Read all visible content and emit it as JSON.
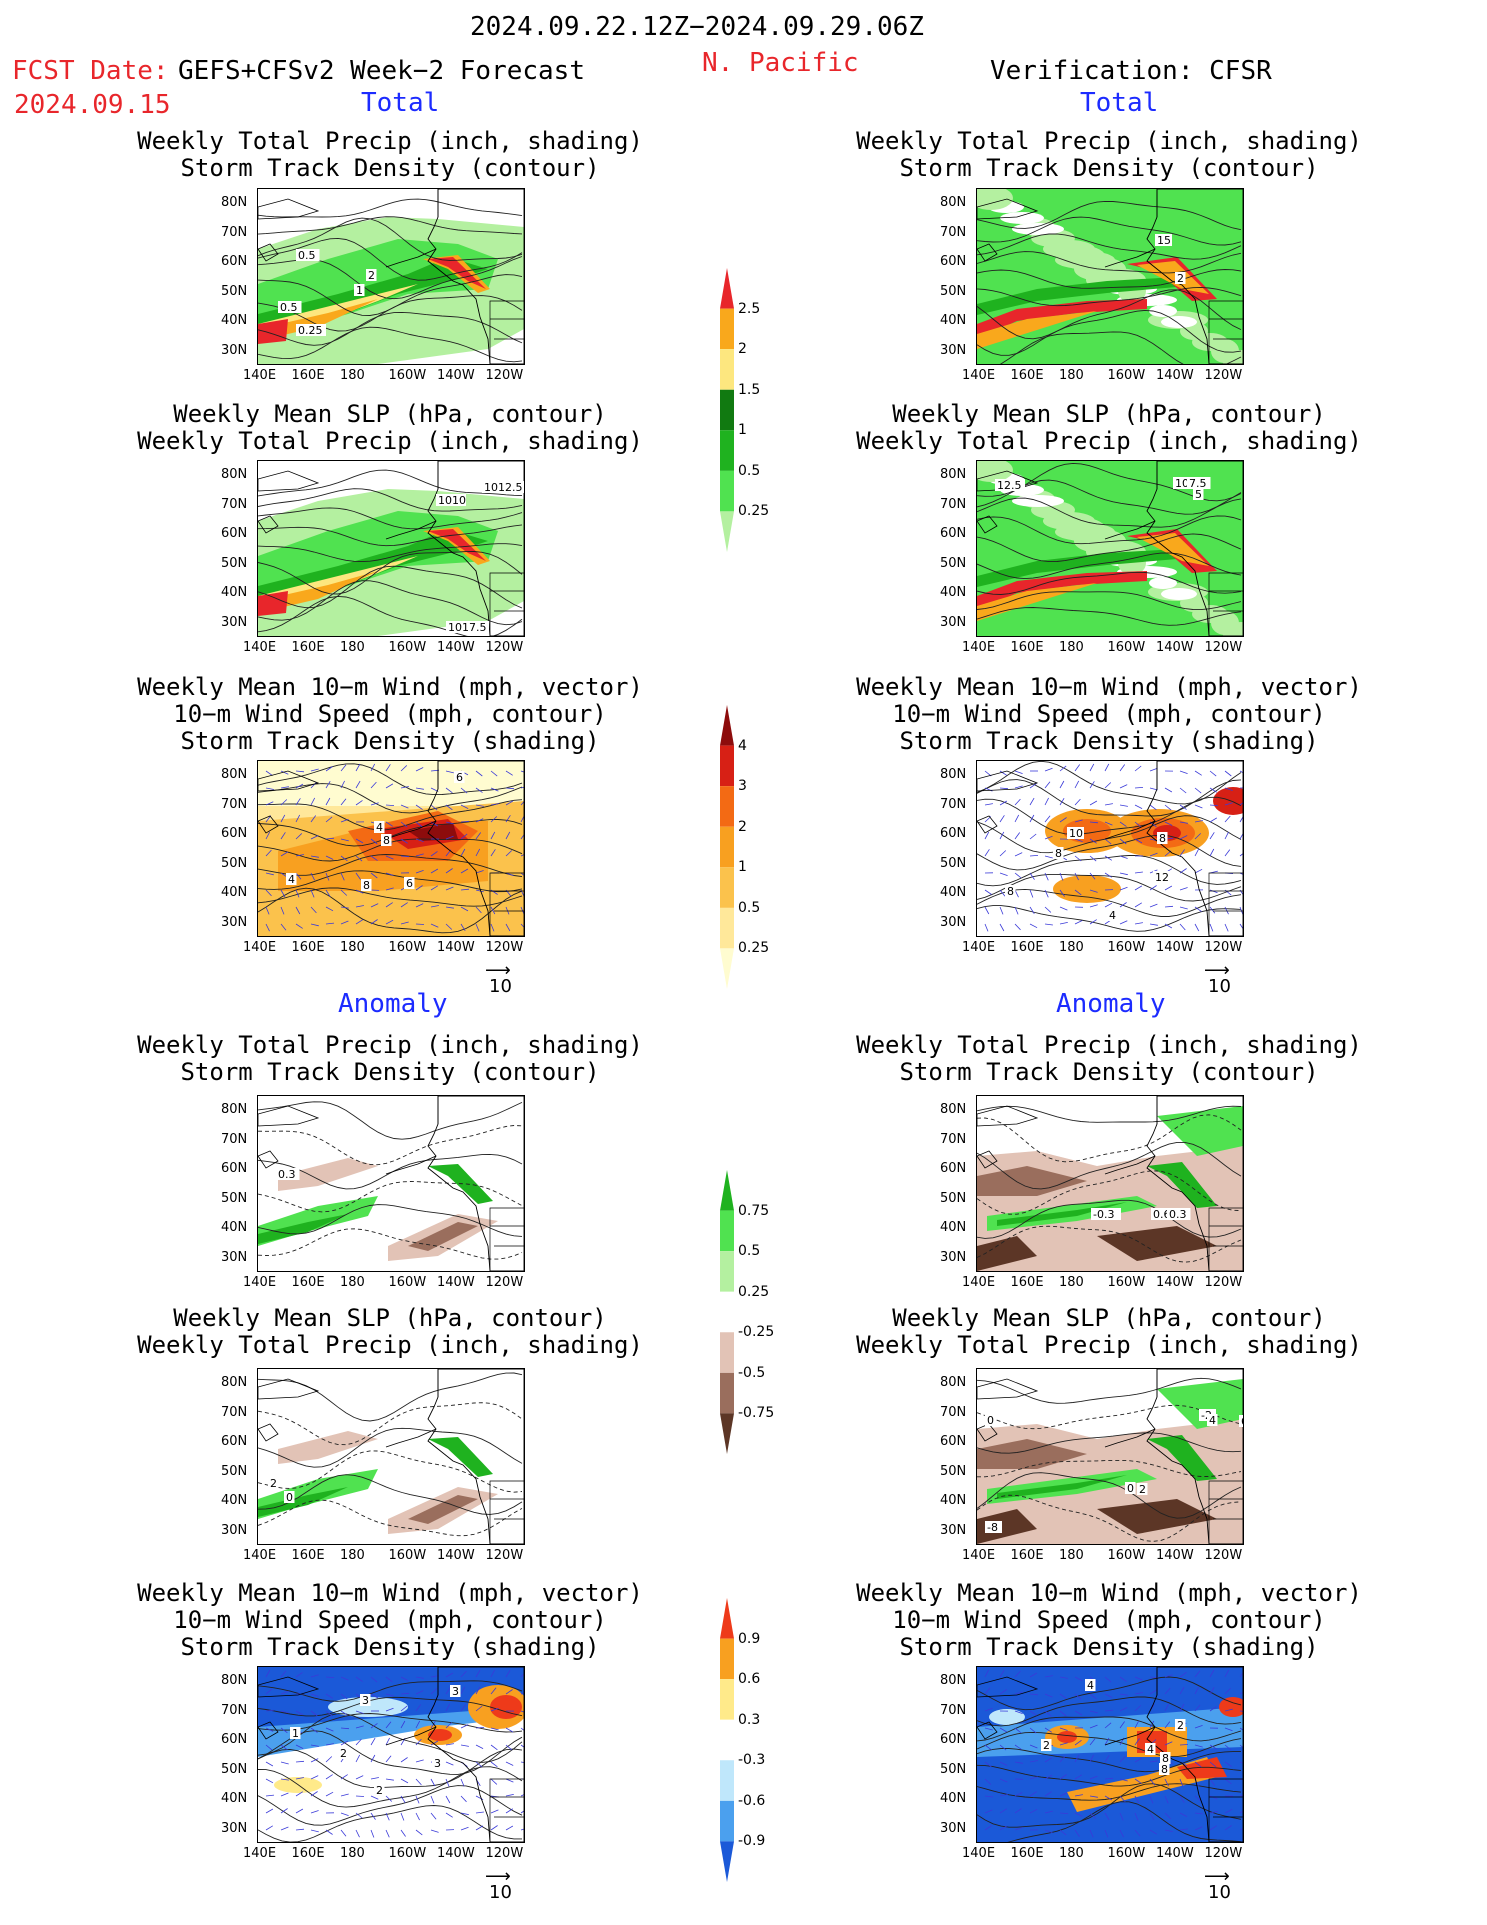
{
  "header": {
    "period": "2024.09.22.12Z−2024.09.29.06Z",
    "region": "N. Pacific",
    "fcst_label": "FCST Date:",
    "fcst_model": "GEFS+CFSv2 Week−2 Forecast",
    "fcst_date": "2024.09.15",
    "verification": "Verification: CFSR"
  },
  "sections": {
    "total_left": "Total",
    "total_right": "Total",
    "anomaly_left": "Anomaly",
    "anomaly_right": "Anomaly"
  },
  "titles": {
    "precip_storm": [
      "Weekly Total Precip (inch, shading)",
      "Storm Track Density (contour)"
    ],
    "slp_precip": [
      "Weekly Mean SLP (hPa, contour)",
      "Weekly Total Precip (inch, shading)"
    ],
    "wind_storm": [
      "Weekly Mean 10−m Wind (mph, vector)",
      "10−m Wind Speed (mph, contour)",
      "Storm Track Density (shading)"
    ]
  },
  "axes": {
    "lat_ticks": [
      "80N",
      "70N",
      "60N",
      "50N",
      "40N",
      "30N"
    ],
    "lon_ticks": [
      "140E",
      "160E",
      "180",
      "160W",
      "140W",
      "120W"
    ]
  },
  "vector_ref": "10",
  "colorbars": {
    "precip_total": {
      "levels": [
        "0.25",
        "0.5",
        "1",
        "1.5",
        "2",
        "2.5"
      ],
      "colors": [
        "#b4f0a0",
        "#50e250",
        "#1fb21f",
        "#117a11",
        "#fde77f",
        "#f9a81c",
        "#e8262b"
      ]
    },
    "storm_total": {
      "levels": [
        "0.25",
        "0.5",
        "1",
        "2",
        "3",
        "4"
      ],
      "colors": [
        "#fffcd0",
        "#ffe89a",
        "#fbc24c",
        "#f8a020",
        "#f36a14",
        "#d72015",
        "#8d0c0c"
      ]
    },
    "precip_anom": {
      "levels": [
        "-0.75",
        "-0.5",
        "-0.25",
        "0.25",
        "0.5",
        "0.75"
      ],
      "colors": [
        "#5c3626",
        "#9a6e5d",
        "#e2c3b6",
        "#ffffff",
        "#b4f0a0",
        "#50e250",
        "#1fb21f"
      ]
    },
    "storm_anom": {
      "levels": [
        "-0.9",
        "-0.6",
        "-0.3",
        "0.3",
        "0.6",
        "0.9"
      ],
      "colors": [
        "#1b59d8",
        "#4ba0ee",
        "#bfe7fb",
        "#ffffff",
        "#ffea8a",
        "#f8a020",
        "#ee3a1a"
      ]
    }
  },
  "chart_data": [
    {
      "type": "heatmap",
      "panel": "forecast-total-precip-storm",
      "title": [
        "Weekly Total Precip (inch, shading)",
        "Storm Track Density (contour)"
      ],
      "contour_labels": [
        "0.5",
        "2",
        "1",
        "0.5",
        "0.25"
      ]
    },
    {
      "type": "heatmap",
      "panel": "forecast-total-slp-precip",
      "title": [
        "Weekly Mean SLP (hPa, contour)",
        "Weekly Total Precip (inch, shading)"
      ],
      "contour_labels": [
        "1012.5",
        "1010",
        "1017.5"
      ]
    },
    {
      "type": "heatmap",
      "panel": "forecast-total-wind-storm",
      "title": [
        "Weekly Mean 10−m Wind (mph, vector)",
        "10−m Wind Speed (mph, contour)",
        "Storm Track Density (shading)"
      ],
      "contour_labels": [
        "6",
        "4",
        "8",
        "4",
        "8",
        "6"
      ]
    },
    {
      "type": "heatmap",
      "panel": "forecast-anom-precip-storm",
      "title": [
        "Weekly Total Precip (inch, shading)",
        "Storm Track Density (contour)"
      ],
      "contour_labels": [
        "0.3"
      ]
    },
    {
      "type": "heatmap",
      "panel": "forecast-anom-slp-precip",
      "title": [
        "Weekly Mean SLP (hPa, contour)",
        "Weekly Total Precip (inch, shading)"
      ],
      "contour_labels": [
        "2",
        "0"
      ]
    },
    {
      "type": "heatmap",
      "panel": "forecast-anom-wind-storm",
      "title": [
        "Weekly Mean 10−m Wind (mph, vector)",
        "10−m Wind Speed (mph, contour)",
        "Storm Track Density (shading)"
      ],
      "contour_labels": [
        "3",
        "3",
        "2",
        "2",
        "3",
        "1"
      ]
    },
    {
      "type": "heatmap",
      "panel": "verif-total-precip-storm",
      "title": [
        "Weekly Total Precip (inch, shading)",
        "Storm Track Density (contour)"
      ],
      "contour_labels": [
        "15",
        "2"
      ]
    },
    {
      "type": "heatmap",
      "panel": "verif-total-slp-precip",
      "title": [
        "Weekly Mean SLP (hPa, contour)",
        "Weekly Total Precip (inch, shading)"
      ],
      "contour_labels": [
        "12.5",
        "1010",
        "7.5",
        "5"
      ]
    },
    {
      "type": "heatmap",
      "panel": "verif-total-wind-storm",
      "title": [
        "Weekly Mean 10−m Wind (mph, vector)",
        "10−m Wind Speed (mph, contour)",
        "Storm Track Density (shading)"
      ],
      "contour_labels": [
        "10",
        "8",
        "8",
        "12",
        "8",
        "4"
      ]
    },
    {
      "type": "heatmap",
      "panel": "verif-anom-precip-storm",
      "title": [
        "Weekly Total Precip (inch, shading)",
        "Storm Track Density (contour)"
      ],
      "contour_labels": [
        "-0.3",
        "0.6",
        "0.3"
      ]
    },
    {
      "type": "heatmap",
      "panel": "verif-anom-slp-precip",
      "title": [
        "Weekly Mean SLP (hPa, contour)",
        "Weekly Total Precip (inch, shading)"
      ],
      "contour_labels": [
        "0",
        "-2",
        "4",
        "6",
        "-8",
        "2",
        "0"
      ]
    },
    {
      "type": "heatmap",
      "panel": "verif-anom-wind-storm",
      "title": [
        "Weekly Mean 10−m Wind (mph, vector)",
        "10−m Wind Speed (mph, contour)",
        "Storm Track Density (shading)"
      ],
      "contour_labels": [
        "4",
        "2",
        "2",
        "4",
        "8",
        "8"
      ]
    }
  ]
}
